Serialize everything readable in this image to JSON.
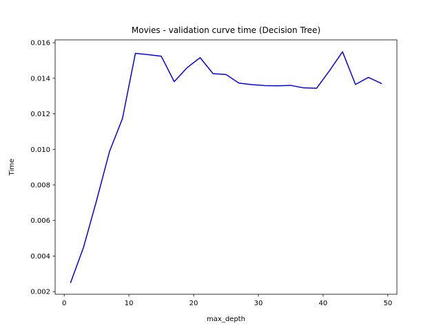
{
  "chart_data": {
    "type": "line",
    "title": "Movies - validation curve time (Decision Tree)",
    "xlabel": "max_depth",
    "ylabel": "Time",
    "xlim": [
      -1.4,
      51.4
    ],
    "ylim": [
      0.00185,
      0.01616
    ],
    "xticks": [
      0,
      10,
      20,
      30,
      40,
      50
    ],
    "xtick_labels": [
      "0",
      "10",
      "20",
      "30",
      "40",
      "50"
    ],
    "yticks": [
      0.002,
      0.004,
      0.006,
      0.008,
      0.01,
      0.012,
      0.014,
      0.016
    ],
    "ytick_labels": [
      "0.002",
      "0.004",
      "0.006",
      "0.008",
      "0.010",
      "0.012",
      "0.014",
      "0.016"
    ],
    "grid": false,
    "series": [
      {
        "color": "#0000ff",
        "x": [
          1,
          3,
          5,
          7,
          9,
          11,
          13,
          15,
          17,
          19,
          21,
          23,
          25,
          27,
          29,
          31,
          33,
          35,
          37,
          39,
          41,
          43,
          45,
          47,
          49
        ],
        "y": [
          0.00251,
          0.0045,
          0.00712,
          0.00988,
          0.01173,
          0.0154,
          0.01533,
          0.01524,
          0.01381,
          0.0146,
          0.01516,
          0.01426,
          0.01421,
          0.01373,
          0.01364,
          0.01359,
          0.01358,
          0.0136,
          0.01346,
          0.01344,
          0.01443,
          0.01549,
          0.01365,
          0.01405,
          0.01371
        ]
      }
    ]
  }
}
